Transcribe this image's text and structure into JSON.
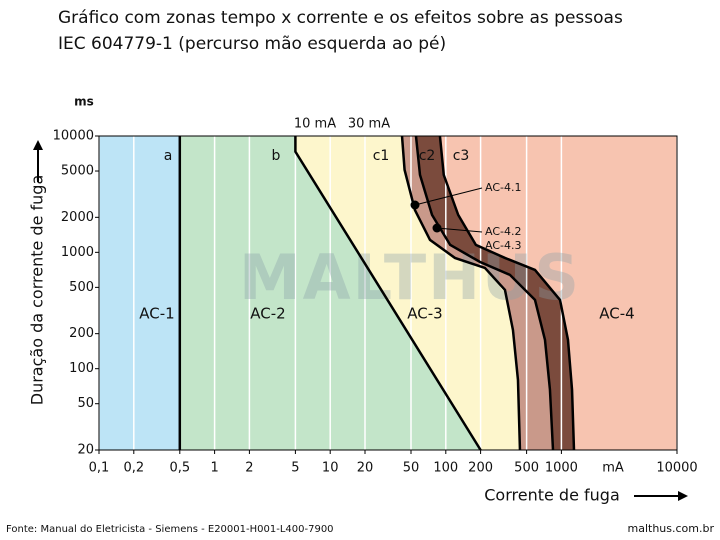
{
  "chart_data": {
    "type": "zones",
    "title": "Gráfico com zonas tempo x corrente e os efeitos sobre as pessoas",
    "subtitle": "IEC 604779-1 (percurso mão esquerda ao pé)",
    "y_unit": "ms",
    "x_unit": "mA",
    "ylabel": "Duração da corrente de fuga",
    "xlabel": "Corrente de fuga",
    "log_x": true,
    "log_y": true,
    "xlim": [
      0.1,
      10000
    ],
    "ylim": [
      20,
      10000
    ],
    "xticks": [
      {
        "value": 0.1,
        "label": "0,1"
      },
      {
        "value": 0.2,
        "label": "0,2"
      },
      {
        "value": 0.5,
        "label": "0,5"
      },
      1,
      2,
      5,
      10,
      20,
      50,
      100,
      200,
      500,
      1000,
      10000
    ],
    "yticks": [
      20,
      50,
      100,
      200,
      500,
      1000,
      2000,
      5000,
      10000
    ],
    "series": [
      {
        "name": "a",
        "color": "#000000",
        "x": [
          0.5,
          0.5
        ],
        "values": [
          10000,
          20
        ]
      },
      {
        "name": "b",
        "color": "#000000",
        "x": [
          5,
          5,
          200
        ],
        "values": [
          10000,
          7340,
          20
        ]
      },
      {
        "name": "c1",
        "color": "#000000",
        "x": [
          41.8,
          44,
          54,
          73,
          120,
          218,
          325,
          381,
          421,
          438
        ],
        "values": [
          10000,
          5116,
          2316,
          1279,
          895,
          735,
          475,
          215,
          80,
          20
        ]
      },
      {
        "name": "c2",
        "color": "#000000",
        "x": [
          55.2,
          59.8,
          76,
          109,
          198,
          359,
          591,
          721,
          796,
          846
        ],
        "values": [
          10000,
          4634,
          2098,
          1159,
          826,
          640,
          390,
          177,
          66,
          20
        ]
      },
      {
        "name": "c3",
        "color": "#000000",
        "x": [
          89,
          96,
          128,
          182,
          325,
          591,
          973,
          1140,
          1236,
          1285
        ],
        "values": [
          10000,
          4634,
          2098,
          1159,
          895,
          706,
          390,
          177,
          66,
          20
        ]
      }
    ],
    "band_colors": [
      "#bde4f6",
      "#c3e5c9",
      "#fdf6cc",
      "#c9998a",
      "#7b4b3d",
      "#f7c4b0"
    ],
    "zones": [
      "AC-1",
      "AC-2",
      "AC-3",
      "AC-4"
    ],
    "annotations": [
      "AC-4.1",
      "AC-4.2",
      "AC-4.3"
    ],
    "current_notes": [
      "10 mA",
      "30 mA"
    ],
    "watermark": "MALTHUS",
    "source": "Fonte: Manual do Eletricista - Siemens - E20001-H001-L400-7900",
    "site": "malthus.com.br",
    "grid": true
  }
}
